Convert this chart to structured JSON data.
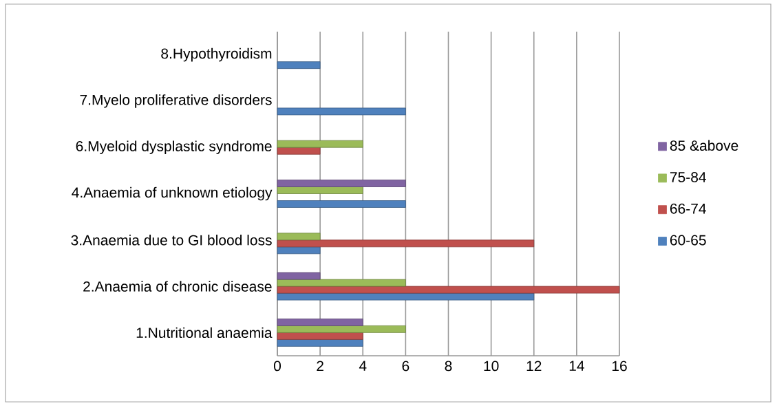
{
  "chart_data": {
    "type": "bar",
    "orientation": "horizontal",
    "categories": [
      "8.Hypothyroidism",
      "7.Myelo proliferative disorders",
      "6.Myeloid dysplastic syndrome",
      "4.Anaemia of unknown etiology",
      "3.Anaemia due to  GI blood loss",
      "2.Anaemia of chronic disease",
      "1.Nutritional anaemia"
    ],
    "series": [
      {
        "name": "60-65",
        "color": "#4f81bd",
        "values": [
          2,
          6,
          null,
          6,
          2,
          12,
          4
        ]
      },
      {
        "name": "66-74",
        "color": "#c0504d",
        "values": [
          null,
          null,
          2,
          null,
          12,
          16,
          4
        ]
      },
      {
        "name": "75-84",
        "color": "#9bbb59",
        "values": [
          null,
          null,
          4,
          4,
          2,
          6,
          6
        ]
      },
      {
        "name": "85 &above",
        "color": "#8064a2",
        "values": [
          null,
          null,
          null,
          6,
          null,
          2,
          4
        ]
      }
    ],
    "xlim": [
      0,
      16
    ],
    "xticks": [
      0,
      2,
      4,
      6,
      8,
      10,
      12,
      14,
      16
    ],
    "grid": "x",
    "legend": "right"
  }
}
